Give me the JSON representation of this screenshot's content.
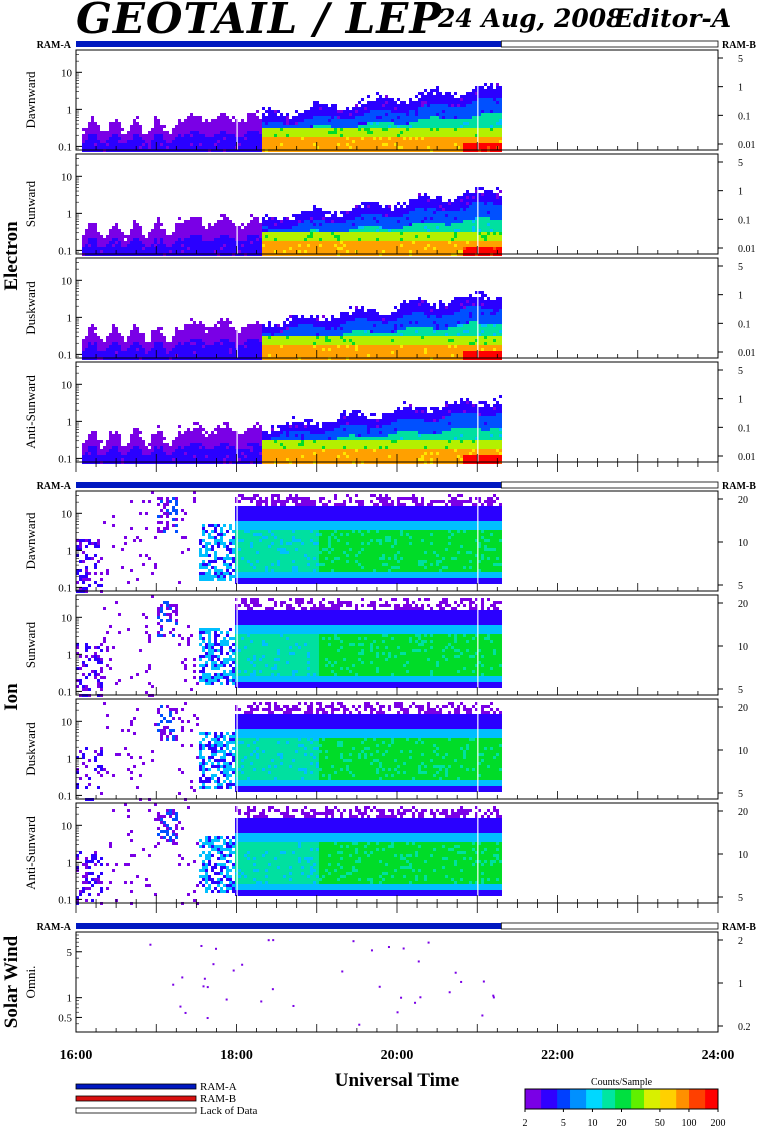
{
  "header": {
    "title": "GEOTAIL / LEP",
    "date": "24 Aug, 2008",
    "editor": "Editor-A"
  },
  "ram_labels": {
    "a": "RAM-A",
    "b": "RAM-B"
  },
  "groups": [
    {
      "name": "Electron",
      "right_axis": "ram"
    },
    {
      "name": "Ion",
      "right_axis": "plain"
    },
    {
      "name": "Solar Wind",
      "right_axis": "ram"
    }
  ],
  "panels": [
    {
      "group": 0,
      "label": "Dawnward",
      "left_ticks": [
        "10",
        "1",
        "0.1"
      ],
      "right_ticks": [
        "5",
        "1",
        "0.1",
        "0.01"
      ]
    },
    {
      "group": 0,
      "label": "Sunward",
      "left_ticks": [
        "10",
        "1",
        "0.1"
      ],
      "right_ticks": [
        "5",
        "1",
        "0.1",
        "0.01"
      ]
    },
    {
      "group": 0,
      "label": "Duskward",
      "left_ticks": [
        "10",
        "1",
        "0.1"
      ],
      "right_ticks": [
        "5",
        "1",
        "0.1",
        "0.01"
      ]
    },
    {
      "group": 0,
      "label": "Anti-Sunward",
      "left_ticks": [
        "10",
        "1",
        "0.1"
      ],
      "right_ticks": [
        "5",
        "1",
        "0.1",
        "0.01"
      ]
    },
    {
      "group": 1,
      "label": "Dawnward",
      "left_ticks": [
        "10",
        "1",
        "0.1"
      ],
      "right_ticks": [
        "20",
        "10",
        "5"
      ]
    },
    {
      "group": 1,
      "label": "Sunward",
      "left_ticks": [
        "10",
        "1",
        "0.1"
      ],
      "right_ticks": [
        "20",
        "10",
        "5"
      ]
    },
    {
      "group": 1,
      "label": "Duskward",
      "left_ticks": [
        "10",
        "1",
        "0.1"
      ],
      "right_ticks": [
        "20",
        "10",
        "5"
      ]
    },
    {
      "group": 1,
      "label": "Anti-Sunward",
      "left_ticks": [
        "10",
        "1",
        "0.1"
      ],
      "right_ticks": [
        "20",
        "10",
        "5"
      ]
    },
    {
      "group": 2,
      "label": "Omni.",
      "left_ticks": [
        "5",
        "1",
        "0.5"
      ],
      "right_ticks": [
        "2",
        "1",
        "0.2"
      ]
    }
  ],
  "time_axis": {
    "label": "Universal Time",
    "ticks": [
      "16:00",
      "18:00",
      "20:00",
      "22:00",
      "24:00"
    ],
    "start_hours": 16,
    "end_hours": 24,
    "data_end_hours": 21.3
  },
  "legend": {
    "items": [
      {
        "label": "RAM-A",
        "color": "#0018c0"
      },
      {
        "label": "RAM-B",
        "color": "#d81010"
      },
      {
        "label": "Lack of Data",
        "color": "#ffffff"
      }
    ]
  },
  "colorbar": {
    "title": "Counts/Sample",
    "ticks": [
      "2",
      "5",
      "10",
      "20",
      "50",
      "100",
      "200"
    ]
  },
  "colors": {
    "ram_a": "#0018c0",
    "ram_b": "#d81010",
    "palette": [
      "#7a00e6",
      "#2a00ff",
      "#0050ff",
      "#00bfff",
      "#00e0a0",
      "#00dc28",
      "#b4f000",
      "#ffe600",
      "#ffa000",
      "#ff5000",
      "#ff0000"
    ]
  },
  "chart_data": {
    "type": "heatmap",
    "title": "GEOTAIL / LEP",
    "xlabel": "Universal Time",
    "x_range": [
      "16:00",
      "24:00"
    ],
    "data_coverage": [
      "16:00",
      "21:18"
    ],
    "y_scale": "log",
    "color_scale": {
      "label": "Counts/Sample",
      "range": [
        2,
        200
      ],
      "scale": "log"
    },
    "panels": [
      {
        "species": "Electron",
        "direction": "Dawnward",
        "ylim": [
          0.08,
          40
        ],
        "typical_peak_counts": 100
      },
      {
        "species": "Electron",
        "direction": "Sunward",
        "ylim": [
          0.08,
          40
        ],
        "typical_peak_counts": 100
      },
      {
        "species": "Electron",
        "direction": "Duskward",
        "ylim": [
          0.08,
          40
        ],
        "typical_peak_counts": 100
      },
      {
        "species": "Electron",
        "direction": "Anti-Sunward",
        "ylim": [
          0.08,
          40
        ],
        "typical_peak_counts": 100
      },
      {
        "species": "Ion",
        "direction": "Dawnward",
        "ylim": [
          0.08,
          40
        ],
        "typical_peak_counts": 20
      },
      {
        "species": "Ion",
        "direction": "Sunward",
        "ylim": [
          0.08,
          40
        ],
        "typical_peak_counts": 20
      },
      {
        "species": "Ion",
        "direction": "Duskward",
        "ylim": [
          0.08,
          40
        ],
        "typical_peak_counts": 20
      },
      {
        "species": "Ion",
        "direction": "Anti-Sunward",
        "ylim": [
          0.08,
          40
        ],
        "typical_peak_counts": 20
      },
      {
        "species": "Solar Wind",
        "direction": "Omni.",
        "ylim": [
          0.3,
          10
        ],
        "typical_peak_counts": 2
      }
    ]
  }
}
